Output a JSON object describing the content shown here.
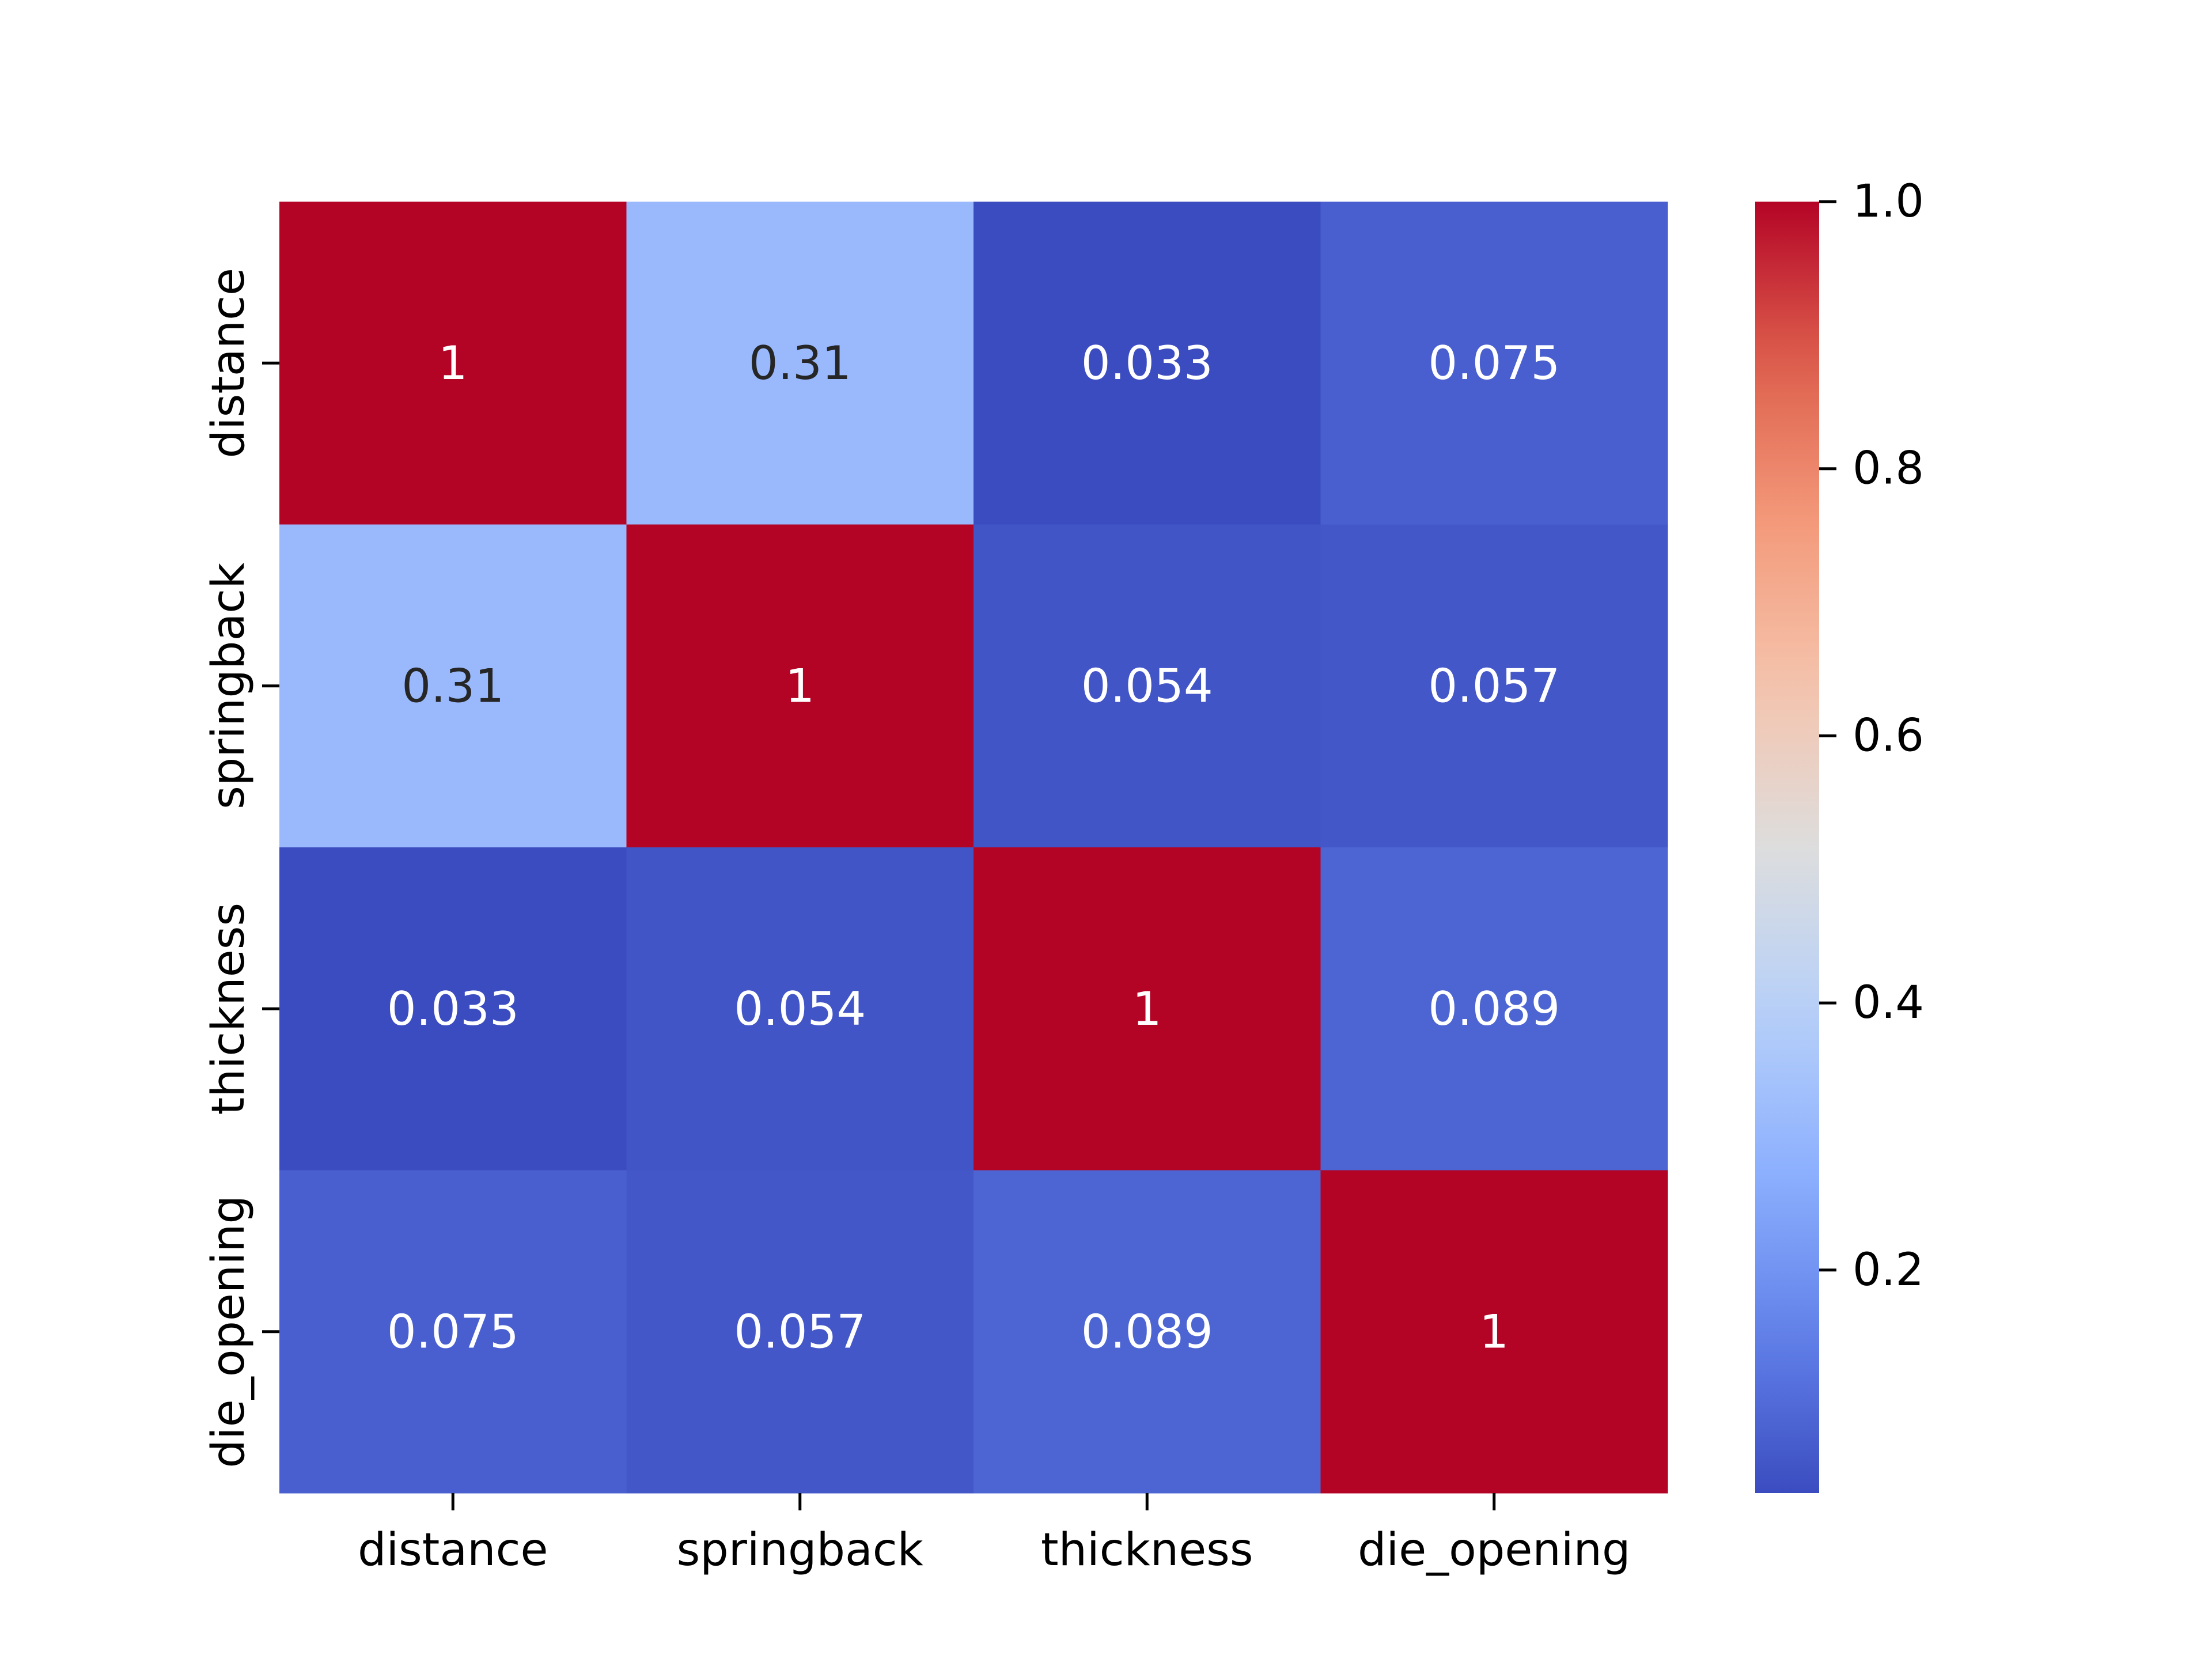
{
  "chart_data": {
    "type": "heatmap",
    "title": "",
    "xlabel": "",
    "ylabel": "",
    "x_categories": [
      "distance",
      "springback",
      "thickness",
      "die_opening"
    ],
    "y_categories": [
      "distance",
      "springback",
      "thickness",
      "die_opening"
    ],
    "values": [
      [
        1,
        0.31,
        0.033,
        0.075
      ],
      [
        0.31,
        1,
        0.054,
        0.057
      ],
      [
        0.033,
        0.054,
        1,
        0.089
      ],
      [
        0.075,
        0.057,
        0.089,
        1
      ]
    ],
    "value_labels": [
      [
        "1",
        "0.31",
        "0.033",
        "0.075"
      ],
      [
        "0.31",
        "1",
        "0.054",
        "0.057"
      ],
      [
        "0.033",
        "0.054",
        "1",
        "0.089"
      ],
      [
        "0.075",
        "0.057",
        "0.089",
        "1"
      ]
    ],
    "colormap": "coolwarm",
    "vmin": 0.033,
    "vmax": 1.0,
    "colorbar": {
      "ticks": [
        0.2,
        0.4,
        0.6,
        0.8,
        1.0
      ],
      "tick_labels": [
        "0.2",
        "0.4",
        "0.6",
        "0.8",
        "1.0"
      ],
      "placement": "right"
    },
    "grid": false
  }
}
